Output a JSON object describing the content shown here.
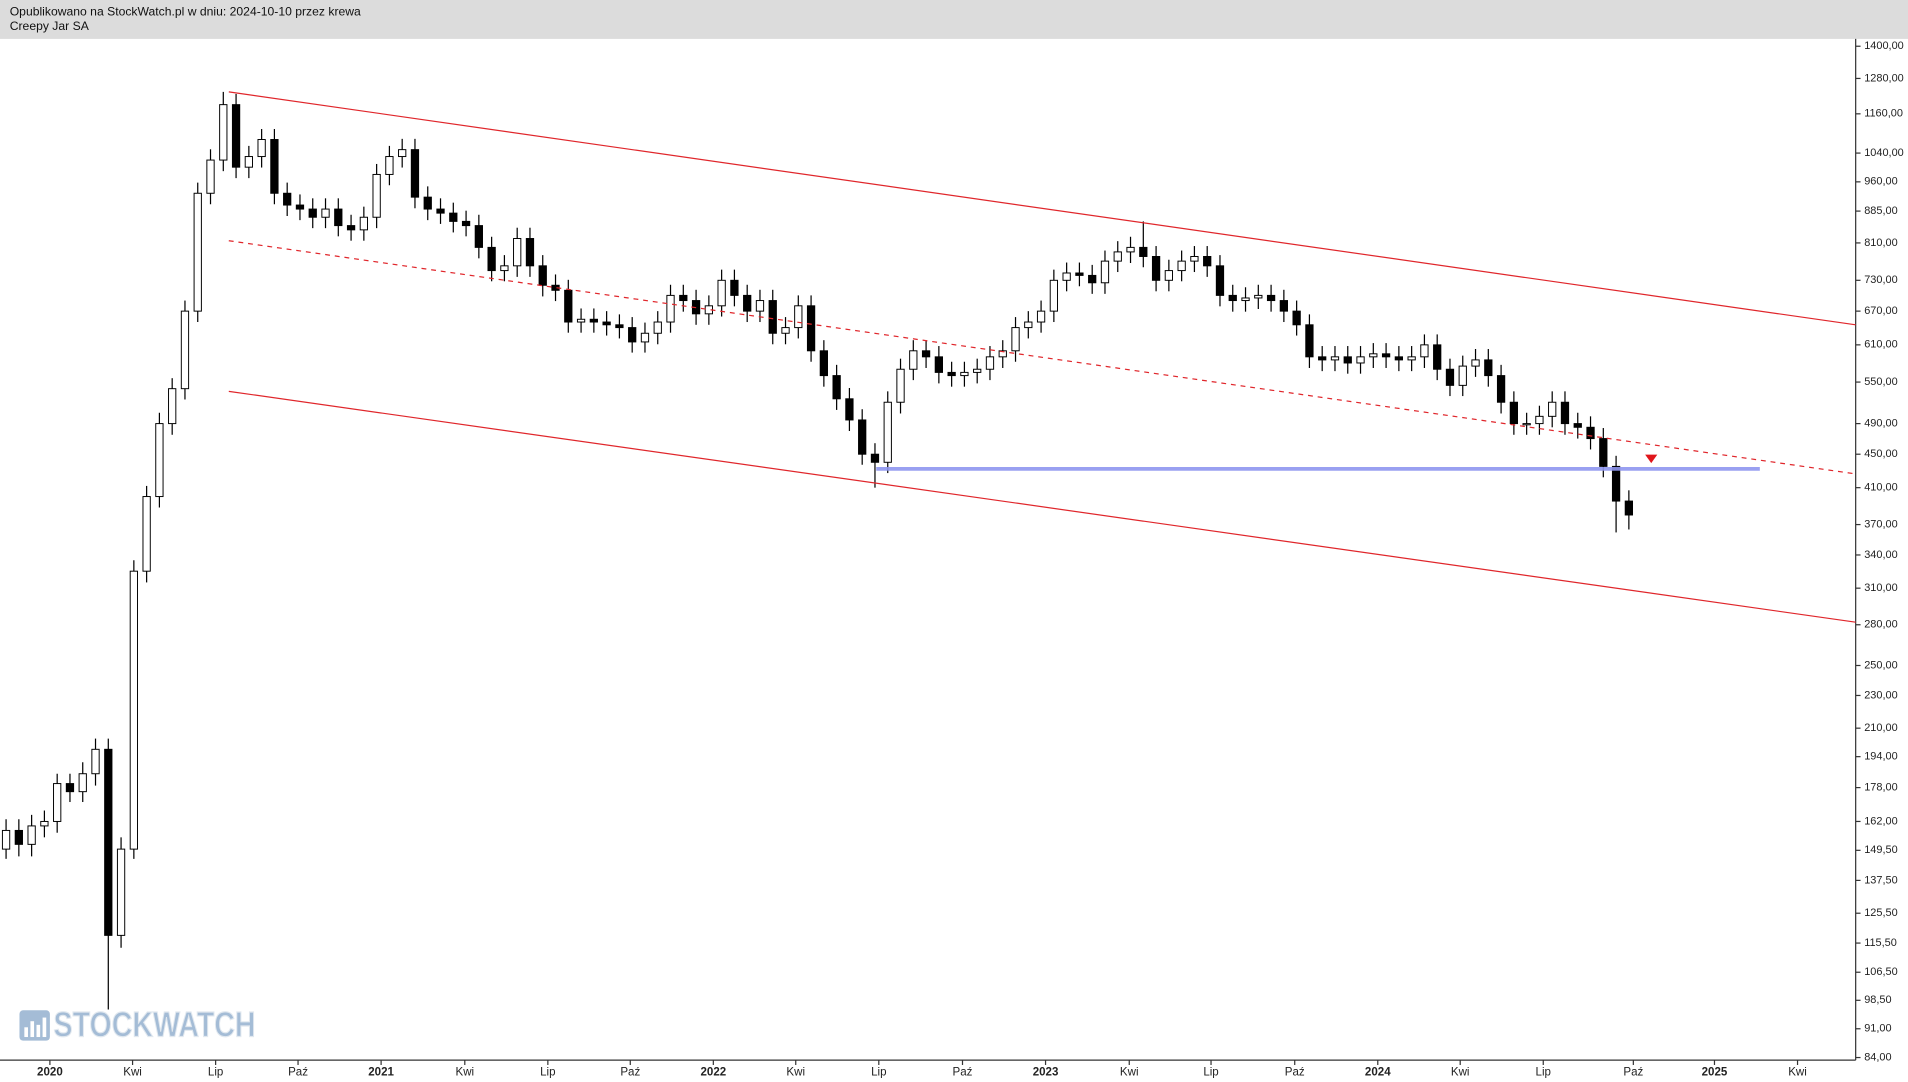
{
  "header": {
    "line1": "Opublikowano na StockWatch.pl w dniu: 2024-10-10 przez krewa",
    "line2": "Creepy Jar SA"
  },
  "watermark": "STOCKWATCH",
  "chart_data": {
    "type": "candlestick",
    "log_scale": true,
    "xlim": [
      -0.95,
      289.5
    ],
    "ylim": [
      83.4,
      1424
    ],
    "yticks": [
      {
        "value": 1400,
        "label": "1400,00"
      },
      {
        "value": 1280,
        "label": "1280,00"
      },
      {
        "value": 1160,
        "label": "1160,00"
      },
      {
        "value": 1040,
        "label": "1040,00"
      },
      {
        "value": 960,
        "label": "960,00"
      },
      {
        "value": 885,
        "label": "885,00"
      },
      {
        "value": 810,
        "label": "810,00"
      },
      {
        "value": 730,
        "label": "730,00"
      },
      {
        "value": 670,
        "label": "670,00"
      },
      {
        "value": 610,
        "label": "610,00"
      },
      {
        "value": 550,
        "label": "550,00"
      },
      {
        "value": 490,
        "label": "490,00"
      },
      {
        "value": 450,
        "label": "450,00"
      },
      {
        "value": 410,
        "label": "410,00"
      },
      {
        "value": 370,
        "label": "370,00"
      },
      {
        "value": 340,
        "label": "340,00"
      },
      {
        "value": 310,
        "label": "310,00"
      },
      {
        "value": 280,
        "label": "280,00"
      },
      {
        "value": 250,
        "label": "250,00"
      },
      {
        "value": 230,
        "label": "230,00"
      },
      {
        "value": 210,
        "label": "210,00"
      },
      {
        "value": 194,
        "label": "194,00"
      },
      {
        "value": 178,
        "label": "178,00"
      },
      {
        "value": 162,
        "label": "162,00"
      },
      {
        "value": 149.5,
        "label": "149,50"
      },
      {
        "value": 137.5,
        "label": "137,50"
      },
      {
        "value": 125.5,
        "label": "125,50"
      },
      {
        "value": 115.5,
        "label": "115,50"
      },
      {
        "value": 106.5,
        "label": "106,50"
      },
      {
        "value": 98.5,
        "label": "98,50"
      },
      {
        "value": 91,
        "label": "91,00"
      },
      {
        "value": 84,
        "label": "84,00"
      }
    ],
    "xticks": [
      {
        "value": 6.86,
        "label": "2020"
      },
      {
        "value": 19.8,
        "label": "Kwi"
      },
      {
        "value": 32.8,
        "label": "Lip"
      },
      {
        "value": 45.7,
        "label": "Paź"
      },
      {
        "value": 58.7,
        "label": "2021"
      },
      {
        "value": 71.8,
        "label": "Kwi"
      },
      {
        "value": 84.8,
        "label": "Lip"
      },
      {
        "value": 97.7,
        "label": "Paź"
      },
      {
        "value": 110.7,
        "label": "2022"
      },
      {
        "value": 123.6,
        "label": "Kwi"
      },
      {
        "value": 136.6,
        "label": "Lip"
      },
      {
        "value": 149.7,
        "label": "Paź"
      },
      {
        "value": 162.7,
        "label": "2023"
      },
      {
        "value": 175.8,
        "label": "Kwi"
      },
      {
        "value": 188.6,
        "label": "Lip"
      },
      {
        "value": 201.7,
        "label": "Paź"
      },
      {
        "value": 214.7,
        "label": "2024"
      },
      {
        "value": 227.6,
        "label": "Kwi"
      },
      {
        "value": 240.6,
        "label": "Lip"
      },
      {
        "value": 254.7,
        "label": "Paź"
      },
      {
        "value": 267.4,
        "label": "2025"
      },
      {
        "value": 280.4,
        "label": "Kwi"
      }
    ],
    "up_color": "#ffffff",
    "down_color": "#000000",
    "outline_color": "#000000",
    "x": [
      0,
      2,
      4,
      6,
      8,
      10,
      12,
      14,
      16,
      18,
      20,
      22,
      24,
      26,
      28,
      30,
      32,
      34,
      36,
      38,
      40,
      42,
      44,
      46,
      48,
      50,
      52,
      54,
      56,
      58,
      60,
      62,
      64,
      66,
      68,
      70,
      72,
      74,
      76,
      78,
      80,
      82,
      84,
      86,
      88,
      90,
      92,
      94,
      96,
      98,
      100,
      102,
      104,
      106,
      108,
      110,
      112,
      114,
      116,
      118,
      120,
      122,
      124,
      126,
      128,
      130,
      132,
      134,
      136,
      138,
      140,
      142,
      144,
      146,
      148,
      150,
      152,
      154,
      156,
      158,
      160,
      162,
      164,
      166,
      168,
      170,
      172,
      174,
      176,
      178,
      180,
      182,
      184,
      186,
      188,
      190,
      192,
      194,
      196,
      198,
      200,
      202,
      204,
      206,
      208,
      210,
      212,
      214,
      216,
      218,
      220,
      222,
      224,
      226,
      228,
      230,
      232,
      234,
      236,
      238,
      240,
      242,
      244,
      246,
      248,
      250,
      252,
      254
    ],
    "candles": [
      [
        150,
        163,
        146,
        158
      ],
      [
        158,
        163,
        147,
        152
      ],
      [
        152,
        165,
        147,
        160
      ],
      [
        160,
        167,
        155,
        162
      ],
      [
        162,
        185,
        157,
        180
      ],
      [
        180,
        185,
        171,
        176
      ],
      [
        176,
        191,
        171,
        185
      ],
      [
        185,
        204,
        179,
        198
      ],
      [
        198,
        204,
        96,
        118
      ],
      [
        118,
        155,
        114,
        150
      ],
      [
        150,
        335,
        146,
        325
      ],
      [
        325,
        412,
        315,
        400
      ],
      [
        400,
        505,
        388,
        490
      ],
      [
        490,
        556,
        475,
        540
      ],
      [
        540,
        690,
        524,
        670
      ],
      [
        670,
        958,
        650,
        930
      ],
      [
        930,
        1051,
        902,
        1020
      ],
      [
        1020,
        1233,
        989,
        1190
      ],
      [
        1190,
        1226,
        970,
        1000
      ],
      [
        1000,
        1061,
        970,
        1030
      ],
      [
        1030,
        1112,
        999,
        1080
      ],
      [
        1080,
        1112,
        902,
        930
      ],
      [
        930,
        958,
        873,
        900
      ],
      [
        900,
        927,
        863,
        890
      ],
      [
        890,
        917,
        844,
        870
      ],
      [
        870,
        917,
        844,
        890
      ],
      [
        890,
        917,
        825,
        850
      ],
      [
        850,
        876,
        815,
        840
      ],
      [
        840,
        896,
        815,
        870
      ],
      [
        870,
        1009,
        844,
        980
      ],
      [
        980,
        1061,
        951,
        1030
      ],
      [
        1030,
        1082,
        999,
        1050
      ],
      [
        1050,
        1082,
        892,
        920
      ],
      [
        920,
        948,
        863,
        890
      ],
      [
        890,
        917,
        854,
        880
      ],
      [
        880,
        906,
        834,
        860
      ],
      [
        860,
        886,
        825,
        850
      ],
      [
        850,
        876,
        776,
        800
      ],
      [
        800,
        824,
        728,
        750
      ],
      [
        750,
        783,
        728,
        760
      ],
      [
        760,
        845,
        737,
        820
      ],
      [
        820,
        845,
        737,
        760
      ],
      [
        760,
        783,
        698,
        720
      ],
      [
        720,
        742,
        689,
        710
      ],
      [
        710,
        731,
        631,
        650
      ],
      [
        650,
        675,
        631,
        655
      ],
      [
        655,
        675,
        631,
        650
      ],
      [
        650,
        670,
        626,
        645
      ],
      [
        645,
        664,
        621,
        640
      ],
      [
        640,
        659,
        597,
        615
      ],
      [
        615,
        649,
        597,
        630
      ],
      [
        630,
        670,
        611,
        650
      ],
      [
        650,
        721,
        631,
        700
      ],
      [
        700,
        721,
        669,
        690
      ],
      [
        690,
        711,
        645,
        665
      ],
      [
        665,
        700,
        645,
        680
      ],
      [
        680,
        752,
        660,
        730
      ],
      [
        730,
        752,
        679,
        700
      ],
      [
        700,
        721,
        650,
        670
      ],
      [
        670,
        711,
        650,
        690
      ],
      [
        690,
        711,
        611,
        630
      ],
      [
        630,
        659,
        611,
        640
      ],
      [
        640,
        700,
        621,
        680
      ],
      [
        680,
        700,
        582,
        600
      ],
      [
        600,
        618,
        543,
        560
      ],
      [
        560,
        577,
        509,
        525
      ],
      [
        525,
        541,
        480,
        495
      ],
      [
        495,
        510,
        437,
        450
      ],
      [
        450,
        464,
        410,
        440
      ],
      [
        440,
        536,
        427,
        520
      ],
      [
        520,
        587,
        504,
        570
      ],
      [
        570,
        618,
        553,
        600
      ],
      [
        600,
        618,
        572,
        590
      ],
      [
        590,
        608,
        548,
        565
      ],
      [
        565,
        582,
        543,
        560
      ],
      [
        560,
        582,
        543,
        565
      ],
      [
        565,
        587,
        548,
        570
      ],
      [
        570,
        608,
        553,
        590
      ],
      [
        590,
        618,
        572,
        600
      ],
      [
        600,
        659,
        582,
        640
      ],
      [
        640,
        670,
        621,
        650
      ],
      [
        650,
        690,
        631,
        670
      ],
      [
        670,
        752,
        650,
        730
      ],
      [
        730,
        767,
        708,
        745
      ],
      [
        745,
        767,
        718,
        740
      ],
      [
        740,
        762,
        703,
        725
      ],
      [
        725,
        793,
        703,
        770
      ],
      [
        770,
        814,
        747,
        790
      ],
      [
        790,
        824,
        766,
        800
      ],
      [
        800,
        860,
        757,
        780
      ],
      [
        780,
        803,
        708,
        730
      ],
      [
        730,
        773,
        708,
        750
      ],
      [
        750,
        793,
        728,
        770
      ],
      [
        770,
        803,
        747,
        780
      ],
      [
        780,
        803,
        737,
        760
      ],
      [
        760,
        783,
        679,
        700
      ],
      [
        700,
        721,
        669,
        690
      ],
      [
        690,
        716,
        669,
        695
      ],
      [
        695,
        721,
        674,
        700
      ],
      [
        700,
        721,
        669,
        690
      ],
      [
        690,
        711,
        650,
        670
      ],
      [
        670,
        690,
        626,
        645
      ],
      [
        645,
        664,
        572,
        590
      ],
      [
        590,
        608,
        567,
        585
      ],
      [
        585,
        608,
        567,
        590
      ],
      [
        590,
        608,
        563,
        580
      ],
      [
        580,
        608,
        563,
        590
      ],
      [
        590,
        613,
        572,
        595
      ],
      [
        595,
        613,
        572,
        590
      ],
      [
        590,
        608,
        567,
        585
      ],
      [
        585,
        608,
        567,
        590
      ],
      [
        590,
        628,
        572,
        610
      ],
      [
        610,
        628,
        553,
        570
      ],
      [
        570,
        587,
        529,
        545
      ],
      [
        545,
        592,
        529,
        575
      ],
      [
        575,
        603,
        558,
        585
      ],
      [
        585,
        603,
        543,
        560
      ],
      [
        560,
        577,
        504,
        520
      ],
      [
        520,
        536,
        475,
        490
      ],
      [
        490,
        505,
        475,
        490
      ],
      [
        490,
        515,
        475,
        500
      ],
      [
        500,
        536,
        485,
        520
      ],
      [
        520,
        536,
        475,
        490
      ],
      [
        490,
        505,
        470,
        485
      ],
      [
        485,
        500,
        456,
        470
      ],
      [
        470,
        484,
        422,
        435
      ],
      [
        435,
        448,
        362,
        395
      ],
      [
        395,
        407,
        365,
        380
      ]
    ],
    "trendlines": [
      {
        "x": [
          34.86,
          289.5
        ],
        "y": [
          1233,
          645
        ],
        "color": "#e0262b",
        "dashed": false
      },
      {
        "x": [
          34.86,
          289.5
        ],
        "y": [
          815,
          426
        ],
        "color": "#e0262b",
        "dashed": true
      },
      {
        "x": [
          34.86,
          289.5
        ],
        "y": [
          536,
          282
        ],
        "color": "#e0262b",
        "dashed": false
      },
      {
        "x": [
          136.2,
          274.5
        ],
        "y": [
          432,
          432
        ],
        "color": "#8f96f0",
        "dashed": false,
        "width": 3
      }
    ],
    "markers": [
      {
        "x": 257.5,
        "y": 445,
        "color": "#e0161b"
      }
    ]
  }
}
